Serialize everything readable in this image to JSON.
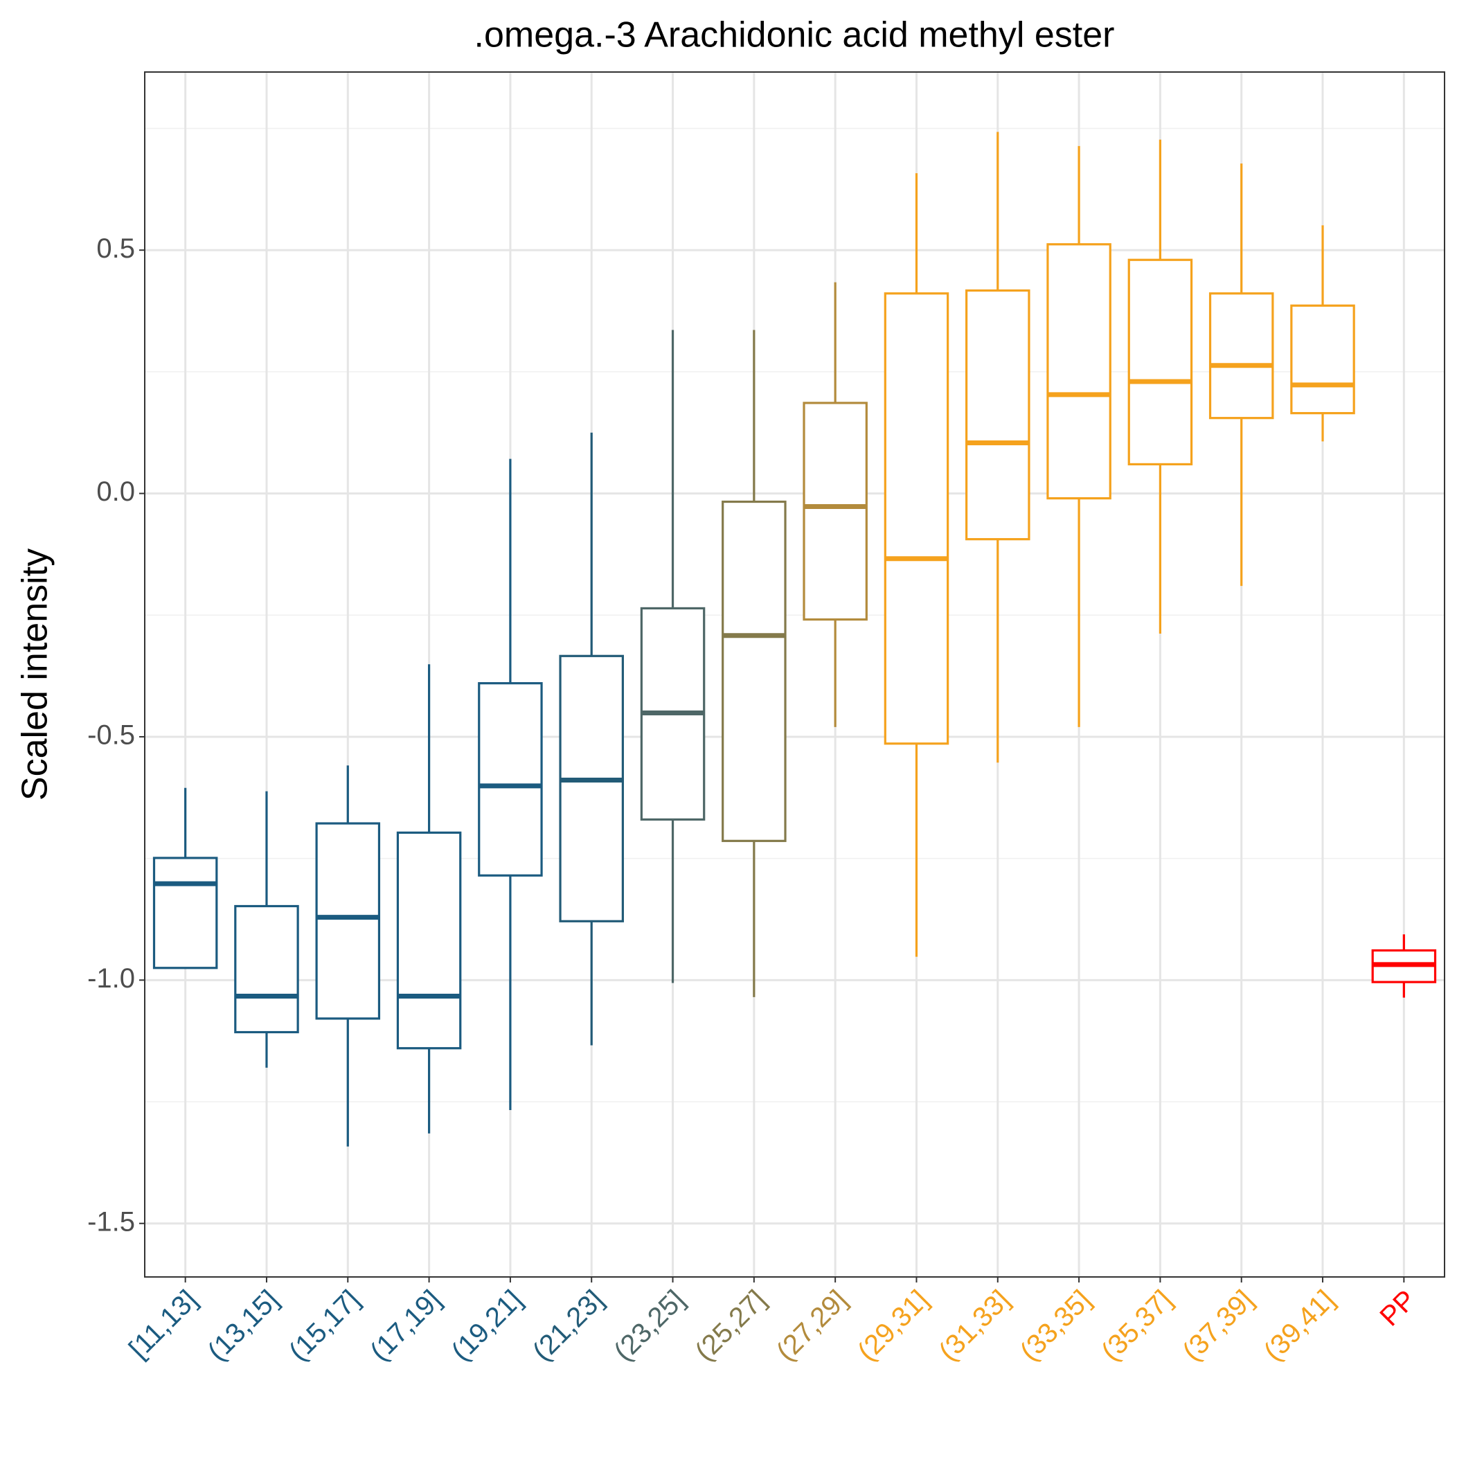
{
  "chart_data": {
    "type": "box",
    "title": ".omega.-3 Arachidonic acid methyl ester",
    "ylabel": "Scaled intensity",
    "categories": [
      "[11,13]",
      "(13,15]",
      "(15,17]",
      "(17,19]",
      "(19,21]",
      "(21,23]",
      "(23,25]",
      "(25,27]",
      "(27,29]",
      "(29,31]",
      "(31,33]",
      "(33,35]",
      "(35,37]",
      "(37,39]",
      "(39,41]",
      "PP"
    ],
    "colors": [
      "#1b5b80",
      "#1b5b80",
      "#1b5b80",
      "#1b5b80",
      "#1b5b80",
      "#225b77",
      "#4e6767",
      "#847a4b",
      "#b38b3c",
      "#f5a21d",
      "#f5a21d",
      "#f5a21d",
      "#f5a21d",
      "#f5a21d",
      "#f5a21d",
      "#ff0000"
    ],
    "whisker_low": [
      -0.975,
      -1.18,
      -1.342,
      -1.315,
      -1.267,
      -1.134,
      -1.006,
      -1.035,
      -0.48,
      -0.952,
      -0.553,
      -0.48,
      -0.288,
      -0.19,
      0.107,
      -1.036
    ],
    "q1": [
      -0.975,
      -1.107,
      -1.079,
      -1.14,
      -0.785,
      -0.879,
      -0.67,
      -0.714,
      -0.259,
      -0.514,
      -0.094,
      -0.01,
      0.06,
      0.155,
      0.165,
      -1.004
    ],
    "median": [
      -0.802,
      -1.033,
      -0.871,
      -1.033,
      -0.601,
      -0.589,
      -0.451,
      -0.292,
      -0.027,
      -0.134,
      0.104,
      0.203,
      0.23,
      0.263,
      0.223,
      -0.968
    ],
    "q3": [
      -0.749,
      -0.848,
      -0.678,
      -0.697,
      -0.39,
      -0.334,
      -0.236,
      -0.017,
      0.186,
      0.411,
      0.417,
      0.512,
      0.48,
      0.411,
      0.386,
      -0.939
    ],
    "whisker_high": [
      -0.605,
      -0.612,
      -0.559,
      -0.351,
      0.071,
      0.125,
      0.336,
      0.336,
      0.434,
      0.658,
      0.743,
      0.714,
      0.727,
      0.678,
      0.551,
      -0.906
    ],
    "ylim": [
      -1.61,
      0.866
    ],
    "yticks": [
      {
        "value": -1.5,
        "label": "-1.5"
      },
      {
        "value": -1,
        "label": "-1.0"
      },
      {
        "value": -0.5,
        "label": "-0.5"
      },
      {
        "value": 0,
        "label": "0.0"
      },
      {
        "value": 0.5,
        "label": "0.5"
      }
    ],
    "yminor": [
      -1.25,
      -0.75,
      -0.25,
      0.25,
      0.75
    ],
    "grid": true
  }
}
